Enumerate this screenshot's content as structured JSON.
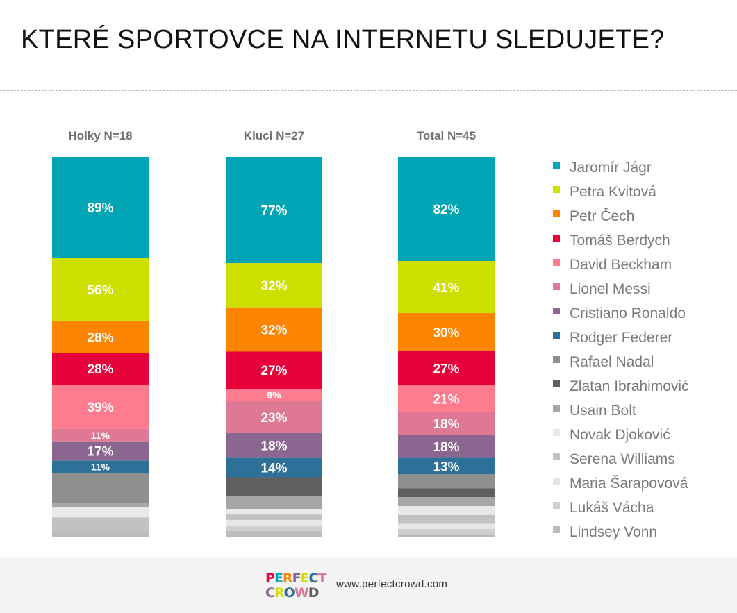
{
  "title": "KTERÉ SPORTOVCE NA INTERNETU SLEDUJETE?",
  "footer": {
    "logo_text": "PERFECT CROWD",
    "logo_line1": "PERFECT",
    "logo_line2": "CROWD",
    "url": "www.perfectcrowd.com"
  },
  "chart_data": {
    "type": "bar",
    "stacked": true,
    "legend_position": "right",
    "categories": [
      "Holky N=18",
      "Kluci N=27",
      "Total N=45"
    ],
    "series": [
      {
        "name": "Jaromír Jágr",
        "color": "#00a5b5",
        "values": [
          89,
          77,
          82
        ],
        "labels": [
          "89%",
          "77%",
          "82%"
        ]
      },
      {
        "name": "Petra Kvitová",
        "color": "#cde000",
        "values": [
          56,
          32,
          41
        ],
        "labels": [
          "56%",
          "32%",
          "41%"
        ]
      },
      {
        "name": "Petr Čech",
        "color": "#ff8500",
        "values": [
          28,
          32,
          30
        ],
        "labels": [
          "28%",
          "32%",
          "30%"
        ]
      },
      {
        "name": "Tomáš Berdych",
        "color": "#e8003b",
        "values": [
          28,
          27,
          27
        ],
        "labels": [
          "28%",
          "27%",
          "27%"
        ]
      },
      {
        "name": "David Beckham",
        "color": "#ff7b8e",
        "values": [
          39,
          9,
          21
        ],
        "labels": [
          "39%",
          "9%",
          "21%"
        ]
      },
      {
        "name": "Lionel Messi",
        "color": "#de7894",
        "values": [
          11,
          23,
          18
        ],
        "labels": [
          "11%",
          "23%",
          "18%"
        ]
      },
      {
        "name": "Cristiano Ronaldo",
        "color": "#8a6690",
        "values": [
          17,
          18,
          18
        ],
        "labels": [
          "17%",
          "18%",
          "18%"
        ]
      },
      {
        "name": "Rodger Federer",
        "color": "#2e7198",
        "values": [
          11,
          14,
          13
        ],
        "labels": [
          "11%",
          "14%",
          "13%"
        ]
      },
      {
        "name": "Rafael Nadal",
        "color": "#8f8f8f",
        "values": [
          26,
          0,
          11
        ],
        "labels": [
          "",
          "",
          ""
        ]
      },
      {
        "name": "Zlatan Ibrahimović",
        "color": "#5f5f5f",
        "values": [
          0,
          14,
          7
        ],
        "labels": [
          "",
          "",
          ""
        ]
      },
      {
        "name": "Usain Bolt",
        "color": "#a7a7a7",
        "values": [
          4,
          9,
          7
        ],
        "labels": [
          "",
          "",
          ""
        ]
      },
      {
        "name": "Novak Djoković",
        "color": "#e9e9e9",
        "values": [
          9,
          4,
          7
        ],
        "labels": [
          "",
          "",
          ""
        ]
      },
      {
        "name": "Serena Williams",
        "color": "#c2c2c2",
        "values": [
          13,
          4,
          7
        ],
        "labels": [
          "",
          "",
          ""
        ]
      },
      {
        "name": "Maria Šarapovová",
        "color": "#e6e6e6",
        "values": [
          0,
          4,
          4
        ],
        "labels": [
          "",
          "",
          ""
        ]
      },
      {
        "name": "Lukáš Vácha",
        "color": "#cfcfcf",
        "values": [
          0,
          4,
          4
        ],
        "labels": [
          "",
          "",
          ""
        ]
      },
      {
        "name": "Lindsey Vonn",
        "color": "#bcbcbc",
        "values": [
          4,
          4,
          2
        ],
        "labels": [
          "",
          "",
          ""
        ]
      }
    ]
  }
}
